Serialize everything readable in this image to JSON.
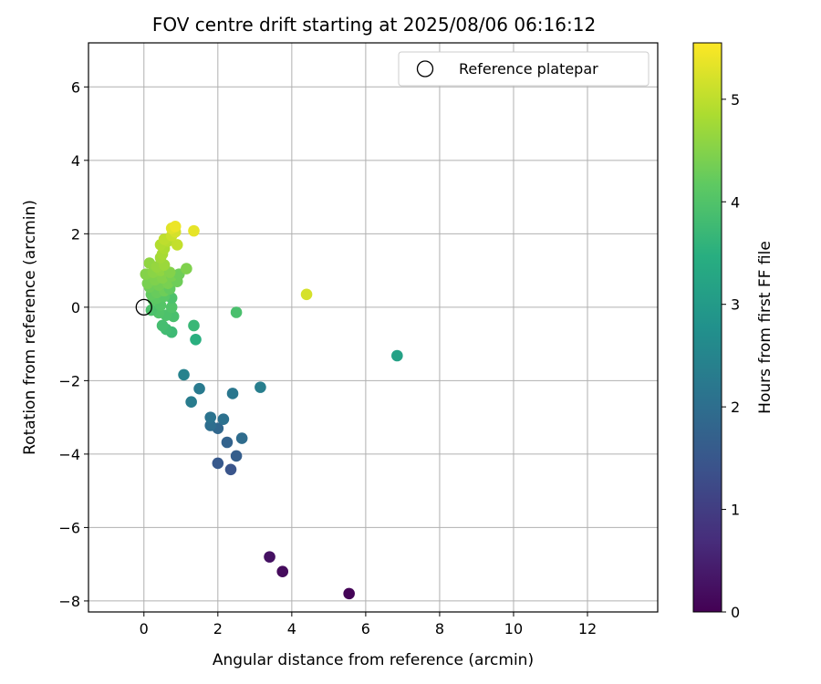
{
  "chart_data": {
    "type": "scatter",
    "title": "FOV centre drift starting at 2025/08/06 06:16:12",
    "xlabel": "Angular distance from reference (arcmin)",
    "ylabel": "Rotation from reference (arcmin)",
    "xlim": [
      -1.5,
      13.9
    ],
    "ylim": [
      -8.3,
      7.2
    ],
    "xticks": [
      0,
      2,
      4,
      6,
      8,
      10,
      12
    ],
    "yticks": [
      -8,
      -6,
      -4,
      -2,
      0,
      2,
      4,
      6
    ],
    "grid": true,
    "legend": {
      "position": "top-right",
      "entries": [
        "Reference platepar"
      ]
    },
    "reference_point": {
      "x": 0,
      "y": 0,
      "label": "Reference platepar"
    },
    "colorbar": {
      "label": "Hours from first FF file",
      "range": [
        0,
        5.55
      ],
      "ticks": [
        0,
        1,
        2,
        3,
        4,
        5
      ],
      "colormap": "viridis"
    },
    "points": [
      {
        "x": 5.55,
        "y": -7.8,
        "c": 0.05
      },
      {
        "x": 3.75,
        "y": -7.2,
        "c": 0.15
      },
      {
        "x": 3.4,
        "y": -6.8,
        "c": 0.25
      },
      {
        "x": 2.35,
        "y": -4.42,
        "c": 1.45
      },
      {
        "x": 2.0,
        "y": -4.25,
        "c": 1.55
      },
      {
        "x": 2.5,
        "y": -4.05,
        "c": 1.65
      },
      {
        "x": 2.25,
        "y": -3.68,
        "c": 1.75
      },
      {
        "x": 2.65,
        "y": -3.57,
        "c": 1.95
      },
      {
        "x": 2.0,
        "y": -3.3,
        "c": 1.85
      },
      {
        "x": 1.8,
        "y": -3.22,
        "c": 2.0
      },
      {
        "x": 2.15,
        "y": -3.05,
        "c": 2.05
      },
      {
        "x": 1.8,
        "y": -3.0,
        "c": 2.1
      },
      {
        "x": 1.28,
        "y": -2.58,
        "c": 2.3
      },
      {
        "x": 2.4,
        "y": -2.35,
        "c": 2.2
      },
      {
        "x": 1.5,
        "y": -2.22,
        "c": 2.25
      },
      {
        "x": 3.15,
        "y": -2.18,
        "c": 2.35
      },
      {
        "x": 1.08,
        "y": -1.84,
        "c": 2.45
      },
      {
        "x": 6.85,
        "y": -1.32,
        "c": 3.15
      },
      {
        "x": 1.4,
        "y": -0.88,
        "c": 3.5
      },
      {
        "x": 0.75,
        "y": -0.68,
        "c": 3.75
      },
      {
        "x": 0.6,
        "y": -0.6,
        "c": 3.8
      },
      {
        "x": 0.5,
        "y": -0.5,
        "c": 3.85
      },
      {
        "x": 1.35,
        "y": -0.5,
        "c": 3.7
      },
      {
        "x": 0.8,
        "y": -0.25,
        "c": 3.9
      },
      {
        "x": 0.6,
        "y": -0.22,
        "c": 3.95
      },
      {
        "x": 0.4,
        "y": -0.15,
        "c": 4.0
      },
      {
        "x": 0.2,
        "y": -0.08,
        "c": 3.95
      },
      {
        "x": 2.5,
        "y": -0.14,
        "c": 3.9
      },
      {
        "x": 0.75,
        "y": 0.0,
        "c": 4.0
      },
      {
        "x": 0.45,
        "y": 0.05,
        "c": 4.05
      },
      {
        "x": 0.75,
        "y": 0.25,
        "c": 3.95
      },
      {
        "x": 0.25,
        "y": 0.2,
        "c": 4.1
      },
      {
        "x": 0.35,
        "y": 0.25,
        "c": 4.15
      },
      {
        "x": 0.55,
        "y": 0.3,
        "c": 4.1
      },
      {
        "x": 0.2,
        "y": 0.35,
        "c": 4.2
      },
      {
        "x": 0.35,
        "y": 0.4,
        "c": 4.25
      },
      {
        "x": 0.55,
        "y": 0.45,
        "c": 4.3
      },
      {
        "x": 0.7,
        "y": 0.5,
        "c": 4.2
      },
      {
        "x": 0.15,
        "y": 0.55,
        "c": 4.3
      },
      {
        "x": 0.4,
        "y": 0.6,
        "c": 4.35
      },
      {
        "x": 0.65,
        "y": 0.65,
        "c": 4.4
      },
      {
        "x": 0.9,
        "y": 0.7,
        "c": 4.3
      },
      {
        "x": 0.1,
        "y": 0.65,
        "c": 4.4
      },
      {
        "x": 0.3,
        "y": 0.75,
        "c": 4.45
      },
      {
        "x": 0.5,
        "y": 0.8,
        "c": 4.5
      },
      {
        "x": 0.75,
        "y": 0.85,
        "c": 4.4
      },
      {
        "x": 0.95,
        "y": 0.9,
        "c": 4.3
      },
      {
        "x": 0.05,
        "y": 0.9,
        "c": 4.5
      },
      {
        "x": 0.25,
        "y": 0.95,
        "c": 4.55
      },
      {
        "x": 0.45,
        "y": 1.0,
        "c": 4.6
      },
      {
        "x": 0.7,
        "y": 0.95,
        "c": 4.5
      },
      {
        "x": 1.15,
        "y": 1.05,
        "c": 4.45
      },
      {
        "x": 0.15,
        "y": 1.2,
        "c": 4.6
      },
      {
        "x": 0.35,
        "y": 1.1,
        "c": 4.65
      },
      {
        "x": 0.55,
        "y": 1.15,
        "c": 4.7
      },
      {
        "x": 0.45,
        "y": 1.35,
        "c": 4.75
      },
      {
        "x": 0.5,
        "y": 1.45,
        "c": 4.8
      },
      {
        "x": 0.55,
        "y": 1.6,
        "c": 4.85
      },
      {
        "x": 0.45,
        "y": 1.7,
        "c": 4.9
      },
      {
        "x": 0.65,
        "y": 1.8,
        "c": 4.95
      },
      {
        "x": 0.55,
        "y": 1.85,
        "c": 5.0
      },
      {
        "x": 0.9,
        "y": 1.7,
        "c": 5.05
      },
      {
        "x": 0.75,
        "y": 1.95,
        "c": 5.1
      },
      {
        "x": 0.85,
        "y": 2.05,
        "c": 5.2
      },
      {
        "x": 0.75,
        "y": 2.15,
        "c": 5.3
      },
      {
        "x": 0.85,
        "y": 2.2,
        "c": 5.4
      },
      {
        "x": 1.35,
        "y": 2.08,
        "c": 5.35
      },
      {
        "x": 4.4,
        "y": 0.35,
        "c": 5.2
      }
    ]
  }
}
